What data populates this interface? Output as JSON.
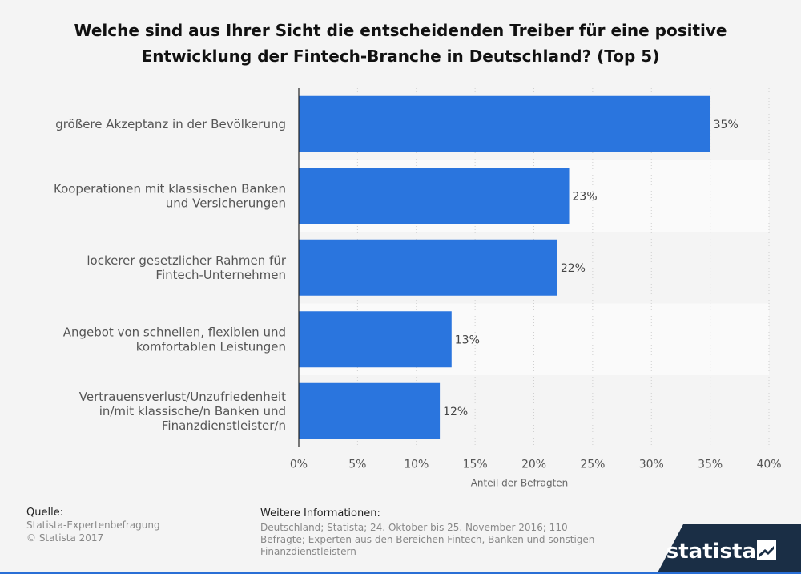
{
  "chart_data": {
    "type": "bar",
    "orientation": "horizontal",
    "title": "Welche sind aus Ihrer Sicht die entscheidenden Treiber für eine positive Entwicklung der Fintech-Branche in Deutschland? (Top 5)",
    "categories": [
      [
        "größere Akzeptanz in der Bevölkerung"
      ],
      [
        "Kooperationen mit klassischen Banken",
        "und Versicherungen"
      ],
      [
        "lockerer gesetzlicher Rahmen für",
        "Fintech-Unternehmen"
      ],
      [
        "Angebot von schnellen, flexiblen und",
        "komfortablen Leistungen"
      ],
      [
        "Vertrauensverlust/Unzufriedenheit",
        "in/mit klassische/n Banken und",
        "Finanzdienstleister/n"
      ]
    ],
    "values": [
      35,
      23,
      22,
      13,
      12
    ],
    "value_labels": [
      "35%",
      "23%",
      "22%",
      "13%",
      "12%"
    ],
    "xlim": [
      0,
      40
    ],
    "ticks": [
      0,
      5,
      10,
      15,
      20,
      25,
      30,
      35,
      40
    ],
    "tick_labels": [
      "0%",
      "5%",
      "10%",
      "15%",
      "20%",
      "25%",
      "30%",
      "35%",
      "40%"
    ],
    "xlabel": "Anteil der Befragten",
    "bar_color": "#2a75de",
    "grid": "vertical dotted",
    "legend": "none"
  },
  "footer": {
    "source_heading": "Quelle:",
    "source_line1": "Statista-Expertenbefragung",
    "source_line2": "© Statista 2017",
    "info_heading": "Weitere Informationen:",
    "info_text": "Deutschland; Statista; 24. Oktober bis 25. November 2016; 110 Befragte; Experten aus den Bereichen Fintech, Banken und sonstigen Finanzdienstleistern"
  },
  "brand": {
    "logo_text": "statista",
    "logo_icon": "statista-logo-icon",
    "accent_color": "#2a6fd6",
    "dark_color": "#1a2e45"
  }
}
